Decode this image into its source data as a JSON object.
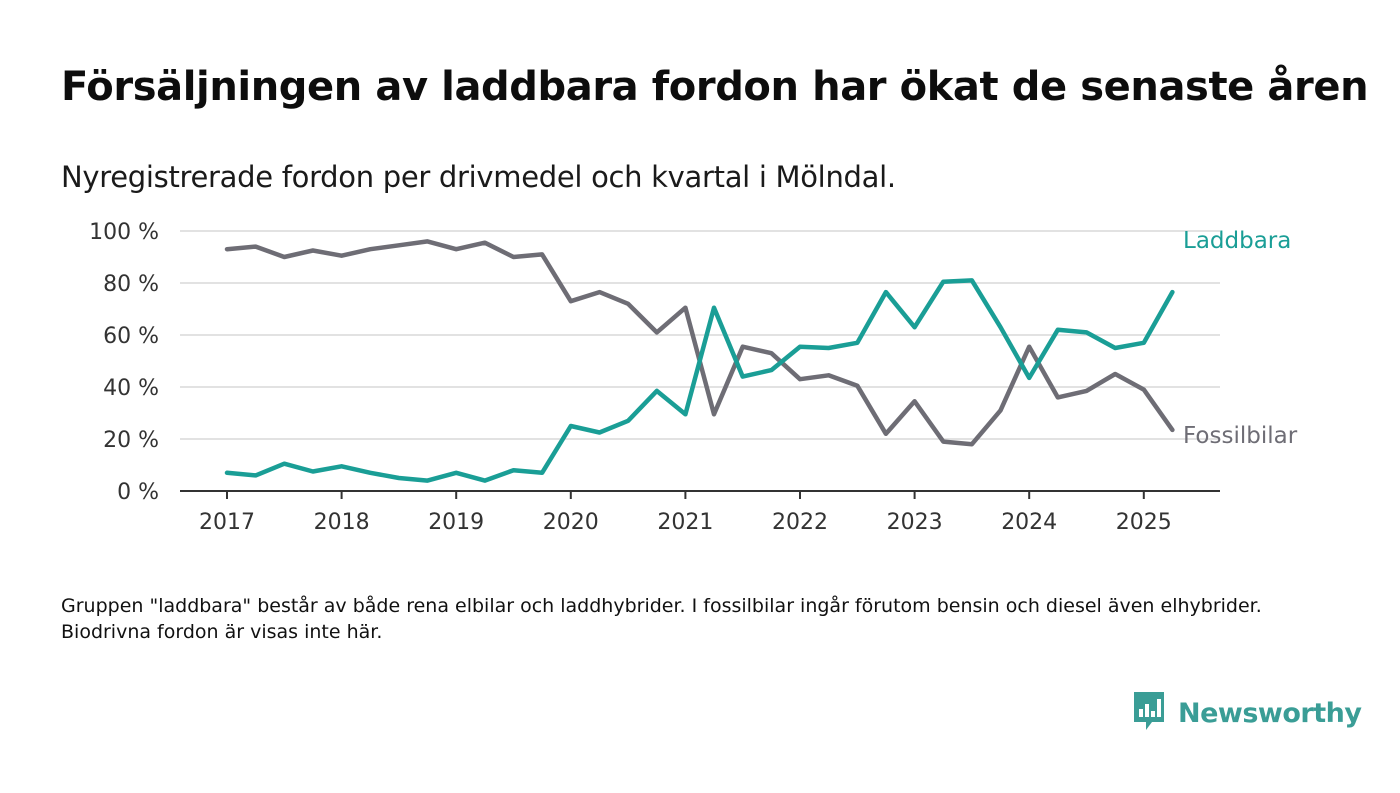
{
  "title": "Försäljningen av laddbara fordon har ökat de senaste åren",
  "subtitle": "Nyregistrerade fordon per drivmedel och kvartal i Mölndal.",
  "note": "Gruppen \"laddbara\" består av både rena elbilar och laddhybrider. I fossilbilar ingår förutom bensin och diesel även elhybrider. Biodrivna fordon är visas inte här.",
  "brand": {
    "name": "Newsworthy",
    "icon": "newsworthy-logo-icon",
    "color": "#3a9d96"
  },
  "chart_data": {
    "type": "line",
    "x_ticks": [
      "2017",
      "2018",
      "2019",
      "2020",
      "2021",
      "2022",
      "2023",
      "2024",
      "2025"
    ],
    "y_ticks": [
      "0 %",
      "20 %",
      "40 %",
      "60 %",
      "80 %",
      "100 %"
    ],
    "ylim": [
      0,
      100
    ],
    "grid": "horizontal",
    "x": [
      "2017-Q1",
      "2017-Q2",
      "2017-Q3",
      "2017-Q4",
      "2018-Q1",
      "2018-Q2",
      "2018-Q3",
      "2018-Q4",
      "2019-Q1",
      "2019-Q2",
      "2019-Q3",
      "2019-Q4",
      "2020-Q1",
      "2020-Q2",
      "2020-Q3",
      "2020-Q4",
      "2021-Q1",
      "2021-Q2",
      "2021-Q3",
      "2021-Q4",
      "2022-Q1",
      "2022-Q2",
      "2022-Q3",
      "2022-Q4",
      "2023-Q1",
      "2023-Q2",
      "2023-Q3",
      "2023-Q4",
      "2024-Q1",
      "2024-Q2",
      "2024-Q3",
      "2024-Q4",
      "2025-Q1",
      "2025-Q2"
    ],
    "series": [
      {
        "name": "Laddbara",
        "color": "#1a9e96",
        "values": [
          7,
          6,
          10.5,
          7.5,
          9.5,
          7,
          5,
          4,
          7,
          4,
          8,
          7,
          25,
          22.5,
          27,
          38.5,
          29.5,
          70.5,
          44,
          46.5,
          55.5,
          55,
          57,
          76.5,
          63,
          80.5,
          81,
          63,
          43.5,
          62,
          61,
          55,
          57,
          76.5
        ]
      },
      {
        "name": "Fossilbilar",
        "color": "#6e6d75",
        "values": [
          93,
          94,
          90,
          92.5,
          90.5,
          93,
          94.5,
          96,
          93,
          95.5,
          90,
          91,
          73,
          76.5,
          72,
          61,
          70.5,
          29.5,
          55.5,
          53,
          43,
          44.5,
          40.5,
          22,
          34.5,
          19,
          18,
          31,
          55.5,
          36,
          38.5,
          45,
          39,
          23.5
        ]
      }
    ]
  }
}
